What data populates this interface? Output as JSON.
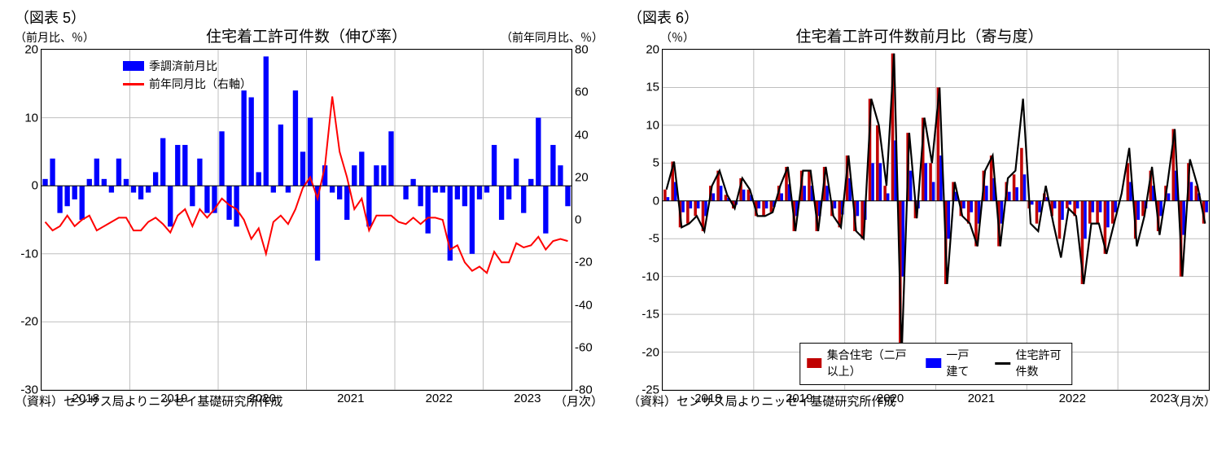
{
  "chart5": {
    "fig_label": "（図表 5）",
    "title": "住宅着工許可件数（伸び率）",
    "y_left_label": "（前月比、％）",
    "y_right_label": "（前年同月比、％）",
    "legend": {
      "bar_label": "季調済前月比",
      "line_label": "前年同月比（右軸）",
      "bar_color": "#0000ff",
      "line_color": "#ff0000"
    },
    "y_left": {
      "min": -30,
      "max": 20,
      "ticks": [
        -30,
        -20,
        -10,
        0,
        10,
        20
      ]
    },
    "y_right": {
      "min": -80,
      "max": 80,
      "ticks": [
        -80,
        -60,
        -40,
        -20,
        0,
        20,
        40,
        60,
        80
      ]
    },
    "x_labels": [
      "2018",
      "2019",
      "2020",
      "2021",
      "2022",
      "2023"
    ],
    "x_label_unit": "（月次）",
    "credit": "（資料）センサス局よりニッセイ基礎研究所作成",
    "grid_color": "#bfbfbf",
    "bars": [
      1,
      4,
      -4,
      -3,
      -2,
      -5,
      1,
      4,
      1,
      -1,
      4,
      1,
      -1,
      -2,
      -1,
      2,
      7,
      -6,
      6,
      6,
      -3,
      4,
      -4,
      -4,
      8,
      -5,
      -6,
      14,
      13,
      2,
      19,
      -1,
      9,
      -1,
      14,
      5,
      10,
      -11,
      3,
      -1,
      -2,
      -5,
      3,
      5,
      -6,
      3,
      3,
      8,
      0,
      -2,
      1,
      -3,
      -7,
      -1,
      -1,
      -11,
      -2,
      -3,
      -10,
      -2,
      -1,
      6,
      -5,
      -2,
      4,
      -4,
      1,
      10,
      -7,
      6,
      3,
      -3
    ],
    "line": [
      -1,
      -5,
      -3,
      2,
      -3,
      0,
      2,
      -5,
      -3,
      -1,
      1,
      1,
      -5,
      -5,
      -1,
      1,
      -2,
      -6,
      2,
      5,
      -3,
      5,
      1,
      5,
      10,
      7,
      5,
      0,
      -9,
      -4,
      -16,
      -1,
      2,
      -2,
      5,
      15,
      20,
      10,
      25,
      58,
      32,
      20,
      5,
      10,
      -5,
      2,
      2,
      2,
      -1,
      -2,
      1,
      -2,
      1,
      1,
      0,
      -14,
      -12,
      -20,
      -24,
      -22,
      -25,
      -15,
      -20,
      -20,
      -11,
      -13,
      -12,
      -8,
      -14,
      -10,
      -9,
      -10
    ],
    "bar_width": 0.7,
    "plot_bg": "#ffffff"
  },
  "chart6": {
    "fig_label": "（図表 6）",
    "title": "住宅着工許可件数前月比（寄与度）",
    "y_label": "（％）",
    "legend": {
      "red_label": "集合住宅（二戸以上）",
      "blue_label": "一戸建て",
      "black_label": "住宅許可件数",
      "red_color": "#c00000",
      "blue_color": "#0000ff",
      "black_color": "#000000"
    },
    "y": {
      "min": -25,
      "max": 20,
      "ticks": [
        -25,
        -20,
        -15,
        -10,
        -5,
        0,
        5,
        10,
        15,
        20
      ]
    },
    "x_labels": [
      "2018",
      "2019",
      "2020",
      "2021",
      "2022",
      "2023"
    ],
    "x_label_unit": "（月次）",
    "credit": "（資料）センサス局よりニッセイ基礎研究所作成",
    "grid_color": "#bfbfbf",
    "multi": [
      1.5,
      5.2,
      -3.5,
      -3,
      -2,
      -4,
      2,
      4,
      0.8,
      -1,
      3,
      1.5,
      -2,
      -2,
      -1.5,
      2,
      4.5,
      -4,
      4,
      4,
      -4,
      4.5,
      -2,
      -3.5,
      6,
      -4,
      -5,
      13.5,
      10,
      2,
      19.5,
      -20.5,
      9,
      -2.3,
      11,
      5,
      15,
      -11,
      2.5,
      -2,
      -3,
      -6,
      4,
      6,
      -6,
      2.5,
      3.5,
      7,
      -1,
      -3,
      1,
      -2,
      -5,
      -1,
      -2,
      -11,
      -3,
      -3,
      -7,
      -3,
      0,
      5,
      -5,
      -2,
      4,
      -4,
      2,
      9.5,
      -10,
      5,
      2,
      -3
    ],
    "single": [
      0.5,
      2.5,
      -1.5,
      -1,
      -1,
      -2,
      1,
      2,
      0.4,
      -0.5,
      1.5,
      0.8,
      -1,
      -1,
      -0.8,
      1,
      2.2,
      -2,
      2,
      2,
      -2,
      2,
      -1,
      -1.8,
      3,
      -2,
      -2.5,
      5,
      5,
      1,
      8,
      -10,
      4,
      -1,
      5,
      2.5,
      6,
      -5,
      1.2,
      -1,
      -1.5,
      -3,
      2,
      3,
      -3,
      1.2,
      1.8,
      3.5,
      -0.5,
      -1.5,
      0.5,
      -1,
      -2.5,
      -0.5,
      -1,
      -5,
      -1.5,
      -1.5,
      -3.5,
      -1.5,
      0,
      2.5,
      -2.5,
      -1,
      2,
      -2,
      1,
      4,
      -4.5,
      2.5,
      1,
      -1.5
    ],
    "total": [
      1.5,
      5.2,
      -3.5,
      -3,
      -2,
      -4,
      2,
      4,
      0.8,
      -1,
      3,
      1.5,
      -2,
      -2,
      -1.5,
      2,
      4.5,
      -4,
      4,
      4,
      -4,
      4.5,
      -2,
      -3.5,
      6,
      -4,
      -5,
      13.5,
      10,
      2,
      19.5,
      -20.5,
      9,
      -2.3,
      11,
      5,
      15,
      -11,
      2.5,
      -2,
      -3,
      -6,
      4,
      6,
      -6,
      3,
      4,
      13.5,
      -3,
      -4,
      2,
      -3,
      -7.5,
      -1,
      -2,
      -11,
      -3,
      -3,
      -7,
      -3,
      1,
      7,
      -6,
      -2,
      4.5,
      -4.5,
      2,
      9.5,
      -10,
      5.5,
      2,
      -3
    ],
    "bar_width": 0.38,
    "plot_bg": "#ffffff"
  }
}
